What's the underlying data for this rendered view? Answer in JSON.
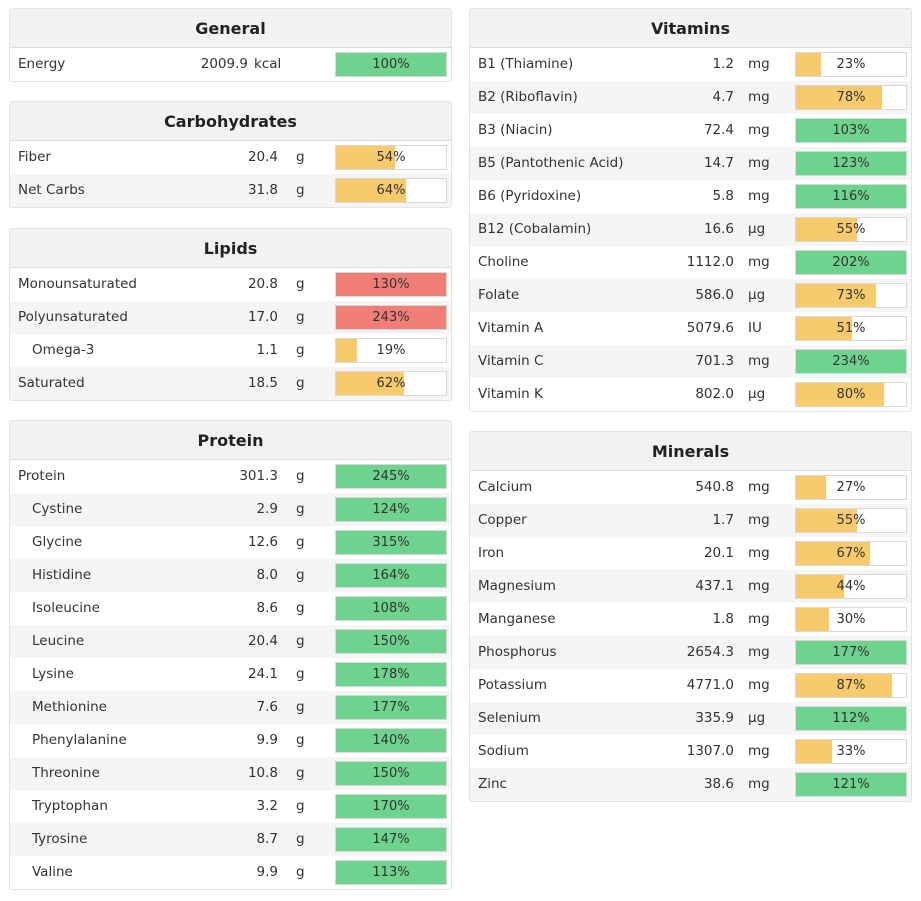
{
  "colors": {
    "green": "#6ed38e",
    "yellow": "#f7cb6c",
    "red": "#ee7e76"
  },
  "general": {
    "title": "General",
    "rows": [
      {
        "name": "Energy",
        "amount": "2009.9",
        "unit": "kcal",
        "pct": "100%",
        "fill": 100,
        "color": "green"
      }
    ]
  },
  "carbohydrates": {
    "title": "Carbohydrates",
    "rows": [
      {
        "name": "Fiber",
        "amount": "20.4",
        "unit": "g",
        "pct": "54%",
        "fill": 54,
        "color": "yellow"
      },
      {
        "name": "Net Carbs",
        "amount": "31.8",
        "unit": "g",
        "pct": "64%",
        "fill": 64,
        "color": "yellow"
      }
    ]
  },
  "lipids": {
    "title": "Lipids",
    "rows": [
      {
        "name": "Monounsaturated",
        "amount": "20.8",
        "unit": "g",
        "pct": "130%",
        "fill": 100,
        "color": "red"
      },
      {
        "name": "Polyunsaturated",
        "amount": "17.0",
        "unit": "g",
        "pct": "243%",
        "fill": 100,
        "color": "red"
      },
      {
        "name": "Omega-3",
        "amount": "1.1",
        "unit": "g",
        "pct": "19%",
        "fill": 19,
        "color": "yellow"
      },
      {
        "name": "Saturated",
        "amount": "18.5",
        "unit": "g",
        "pct": "62%",
        "fill": 62,
        "color": "yellow"
      }
    ]
  },
  "protein": {
    "title": "Protein",
    "rows": [
      {
        "name": "Protein",
        "amount": "301.3",
        "unit": "g",
        "pct": "245%",
        "fill": 100,
        "color": "green"
      },
      {
        "name": "Cystine",
        "amount": "2.9",
        "unit": "g",
        "pct": "124%",
        "fill": 100,
        "color": "green"
      },
      {
        "name": "Glycine",
        "amount": "12.6",
        "unit": "g",
        "pct": "315%",
        "fill": 100,
        "color": "green"
      },
      {
        "name": "Histidine",
        "amount": "8.0",
        "unit": "g",
        "pct": "164%",
        "fill": 100,
        "color": "green"
      },
      {
        "name": "Isoleucine",
        "amount": "8.6",
        "unit": "g",
        "pct": "108%",
        "fill": 100,
        "color": "green"
      },
      {
        "name": "Leucine",
        "amount": "20.4",
        "unit": "g",
        "pct": "150%",
        "fill": 100,
        "color": "green"
      },
      {
        "name": "Lysine",
        "amount": "24.1",
        "unit": "g",
        "pct": "178%",
        "fill": 100,
        "color": "green"
      },
      {
        "name": "Methionine",
        "amount": "7.6",
        "unit": "g",
        "pct": "177%",
        "fill": 100,
        "color": "green"
      },
      {
        "name": "Phenylalanine",
        "amount": "9.9",
        "unit": "g",
        "pct": "140%",
        "fill": 100,
        "color": "green"
      },
      {
        "name": "Threonine",
        "amount": "10.8",
        "unit": "g",
        "pct": "150%",
        "fill": 100,
        "color": "green"
      },
      {
        "name": "Tryptophan",
        "amount": "3.2",
        "unit": "g",
        "pct": "170%",
        "fill": 100,
        "color": "green"
      },
      {
        "name": "Tyrosine",
        "amount": "8.7",
        "unit": "g",
        "pct": "147%",
        "fill": 100,
        "color": "green"
      },
      {
        "name": "Valine",
        "amount": "9.9",
        "unit": "g",
        "pct": "113%",
        "fill": 100,
        "color": "green"
      }
    ]
  },
  "vitamins": {
    "title": "Vitamins",
    "rows": [
      {
        "name": "B1 (Thiamine)",
        "amount": "1.2",
        "unit": "mg",
        "pct": "23%",
        "fill": 23,
        "color": "yellow"
      },
      {
        "name": "B2 (Riboflavin)",
        "amount": "4.7",
        "unit": "mg",
        "pct": "78%",
        "fill": 78,
        "color": "yellow"
      },
      {
        "name": "B3 (Niacin)",
        "amount": "72.4",
        "unit": "mg",
        "pct": "103%",
        "fill": 100,
        "color": "green"
      },
      {
        "name": "B5 (Pantothenic Acid)",
        "amount": "14.7",
        "unit": "mg",
        "pct": "123%",
        "fill": 100,
        "color": "green"
      },
      {
        "name": "B6 (Pyridoxine)",
        "amount": "5.8",
        "unit": "mg",
        "pct": "116%",
        "fill": 100,
        "color": "green"
      },
      {
        "name": "B12 (Cobalamin)",
        "amount": "16.6",
        "unit": "µg",
        "pct": "55%",
        "fill": 55,
        "color": "yellow"
      },
      {
        "name": "Choline",
        "amount": "1112.0",
        "unit": "mg",
        "pct": "202%",
        "fill": 100,
        "color": "green"
      },
      {
        "name": "Folate",
        "amount": "586.0",
        "unit": "µg",
        "pct": "73%",
        "fill": 73,
        "color": "yellow"
      },
      {
        "name": "Vitamin A",
        "amount": "5079.6",
        "unit": "IU",
        "pct": "51%",
        "fill": 51,
        "color": "yellow"
      },
      {
        "name": "Vitamin C",
        "amount": "701.3",
        "unit": "mg",
        "pct": "234%",
        "fill": 100,
        "color": "green"
      },
      {
        "name": "Vitamin K",
        "amount": "802.0",
        "unit": "µg",
        "pct": "80%",
        "fill": 80,
        "color": "yellow"
      }
    ]
  },
  "minerals": {
    "title": "Minerals",
    "rows": [
      {
        "name": "Calcium",
        "amount": "540.8",
        "unit": "mg",
        "pct": "27%",
        "fill": 27,
        "color": "yellow"
      },
      {
        "name": "Copper",
        "amount": "1.7",
        "unit": "mg",
        "pct": "55%",
        "fill": 55,
        "color": "yellow"
      },
      {
        "name": "Iron",
        "amount": "20.1",
        "unit": "mg",
        "pct": "67%",
        "fill": 67,
        "color": "yellow"
      },
      {
        "name": "Magnesium",
        "amount": "437.1",
        "unit": "mg",
        "pct": "44%",
        "fill": 44,
        "color": "yellow"
      },
      {
        "name": "Manganese",
        "amount": "1.8",
        "unit": "mg",
        "pct": "30%",
        "fill": 30,
        "color": "yellow"
      },
      {
        "name": "Phosphorus",
        "amount": "2654.3",
        "unit": "mg",
        "pct": "177%",
        "fill": 100,
        "color": "green"
      },
      {
        "name": "Potassium",
        "amount": "4771.0",
        "unit": "mg",
        "pct": "87%",
        "fill": 87,
        "color": "yellow"
      },
      {
        "name": "Selenium",
        "amount": "335.9",
        "unit": "µg",
        "pct": "112%",
        "fill": 100,
        "color": "green"
      },
      {
        "name": "Sodium",
        "amount": "1307.0",
        "unit": "mg",
        "pct": "33%",
        "fill": 33,
        "color": "yellow"
      },
      {
        "name": "Zinc",
        "amount": "38.6",
        "unit": "mg",
        "pct": "121%",
        "fill": 100,
        "color": "green"
      }
    ]
  }
}
